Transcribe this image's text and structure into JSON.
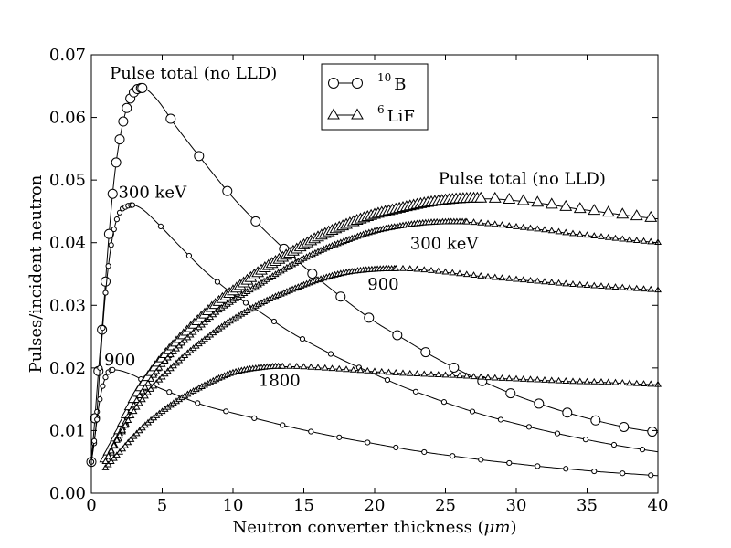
{
  "chart_data": {
    "type": "line",
    "title": "",
    "xlabel": "Neutron converter thickness (",
    "xlabel_symbol": "μm",
    "xlabel_close": ")",
    "ylabel": "Pulses/incident neutron",
    "xlim": [
      0,
      40
    ],
    "ylim": [
      0,
      0.07
    ],
    "xticks": [
      0,
      5,
      10,
      15,
      20,
      25,
      30,
      35,
      40
    ],
    "xtick_labels": [
      "0",
      "5",
      "10",
      "15",
      "20",
      "25",
      "30",
      "35",
      "40"
    ],
    "yticks": [
      0,
      0.01,
      0.02,
      0.03,
      0.04,
      0.05,
      0.06,
      0.07
    ],
    "ytick_labels": [
      "0.00",
      "0.01",
      "0.02",
      "0.03",
      "0.04",
      "0.05",
      "0.06",
      "0.07"
    ],
    "grid": false,
    "legend_position": "top-center",
    "legend": [
      {
        "sup": "10",
        "label": "B",
        "marker": "circle"
      },
      {
        "sup": "6",
        "label": "LiF",
        "marker": "triangle"
      }
    ],
    "annotations": [
      {
        "text": "Pulse total (no LLD)",
        "x": 1.3,
        "y": 0.0662
      },
      {
        "text": "300 keV",
        "x": 1.9,
        "y": 0.0472
      },
      {
        "text": "900",
        "x": 0.9,
        "y": 0.0204
      },
      {
        "text": "Pulse total (no LLD)",
        "x": 24.5,
        "y": 0.0494
      },
      {
        "text": "300 keV",
        "x": 22.5,
        "y": 0.039
      },
      {
        "text": "900",
        "x": 19.5,
        "y": 0.0325
      },
      {
        "text": "1800",
        "x": 11.8,
        "y": 0.0171
      }
    ],
    "series": [
      {
        "material": "B",
        "marker": "circle",
        "size": "large",
        "peak": [
          3.6,
          0.0647
        ],
        "x": [
          0,
          0.2,
          0.5,
          0.8,
          1.2,
          1.6,
          2.0,
          2.5,
          3.0,
          3.6,
          4.5,
          6,
          8,
          10,
          12,
          14,
          16,
          18,
          20,
          22,
          24,
          26,
          28,
          30,
          32,
          34,
          36,
          38,
          40
        ],
        "y": [
          0.005,
          0.0105,
          0.0195,
          0.0275,
          0.04,
          0.05,
          0.0565,
          0.0615,
          0.064,
          0.0647,
          0.0632,
          0.0585,
          0.0527,
          0.0472,
          0.0425,
          0.0382,
          0.0343,
          0.0307,
          0.0274,
          0.0247,
          0.022,
          0.0196,
          0.0175,
          0.0156,
          0.014,
          0.0126,
          0.0114,
          0.0104,
          0.0097
        ]
      },
      {
        "material": "B",
        "marker": "circle",
        "size": "small",
        "peak": [
          2.9,
          0.046
        ],
        "x": [
          0,
          0.3,
          0.6,
          1.0,
          1.5,
          2.0,
          2.5,
          2.9,
          3.5,
          4.5,
          6,
          8,
          10,
          12,
          14,
          16,
          18,
          20,
          22,
          24,
          26,
          28,
          30,
          32,
          34,
          36,
          38,
          40
        ],
        "y": [
          0.005,
          0.01,
          0.02,
          0.032,
          0.041,
          0.0448,
          0.0458,
          0.046,
          0.0455,
          0.0435,
          0.04,
          0.0355,
          0.0318,
          0.0288,
          0.0258,
          0.0233,
          0.021,
          0.019,
          0.017,
          0.0153,
          0.0137,
          0.0123,
          0.0111,
          0.01,
          0.009,
          0.0081,
          0.0073,
          0.0066
        ]
      },
      {
        "material": "B",
        "marker": "circle",
        "size": "small",
        "peak": [
          1.5,
          0.0197
        ],
        "x": [
          0,
          0.3,
          0.6,
          1.0,
          1.5,
          2.0,
          3,
          4,
          6,
          8,
          10,
          12,
          14,
          16,
          18,
          20,
          22,
          24,
          26,
          28,
          30,
          32,
          34,
          36,
          38,
          40
        ],
        "y": [
          0.005,
          0.01,
          0.015,
          0.0185,
          0.0197,
          0.0196,
          0.0188,
          0.0176,
          0.0157,
          0.014,
          0.0128,
          0.0117,
          0.0106,
          0.0096,
          0.0087,
          0.0079,
          0.0071,
          0.0064,
          0.0058,
          0.0052,
          0.0047,
          0.0042,
          0.0038,
          0.0034,
          0.0031,
          0.0028
        ]
      },
      {
        "material": "LiF",
        "marker": "triangle",
        "size": "large",
        "peak": [
          27.5,
          0.047
        ],
        "x": [
          1,
          2,
          3,
          4,
          5,
          6,
          7,
          8,
          9,
          10,
          12,
          14,
          16,
          18,
          20,
          22,
          24,
          26,
          28,
          30,
          32,
          34,
          36,
          38,
          40
        ],
        "y": [
          0.0055,
          0.01,
          0.015,
          0.0185,
          0.0215,
          0.024,
          0.0263,
          0.0285,
          0.0305,
          0.0322,
          0.0355,
          0.0382,
          0.0408,
          0.0428,
          0.0444,
          0.0455,
          0.0464,
          0.0469,
          0.047,
          0.0467,
          0.0462,
          0.0455,
          0.0449,
          0.0443,
          0.0438
        ]
      },
      {
        "material": "LiF",
        "marker": "triangle",
        "size": "small",
        "peak": [
          26.5,
          0.0433
        ],
        "x": [
          1,
          2,
          3,
          4,
          5,
          6,
          7,
          8,
          9,
          10,
          12,
          14,
          16,
          18,
          20,
          22,
          24,
          26,
          28,
          30,
          32,
          34,
          36,
          38,
          40
        ],
        "y": [
          0.005,
          0.0095,
          0.014,
          0.0175,
          0.0205,
          0.023,
          0.0252,
          0.0272,
          0.0292,
          0.0307,
          0.0335,
          0.0362,
          0.0385,
          0.0403,
          0.0418,
          0.0427,
          0.0432,
          0.0433,
          0.043,
          0.0425,
          0.042,
          0.0414,
          0.0409,
          0.0404,
          0.04
        ]
      },
      {
        "material": "LiF",
        "marker": "triangle",
        "size": "small",
        "peak": [
          21.5,
          0.0358
        ],
        "x": [
          1,
          2,
          3,
          4,
          5,
          6,
          7,
          8,
          9,
          10,
          12,
          14,
          16,
          18,
          20,
          22,
          24,
          26,
          28,
          30,
          32,
          34,
          36,
          38,
          40
        ],
        "y": [
          0.005,
          0.0092,
          0.013,
          0.016,
          0.0185,
          0.0207,
          0.0227,
          0.0245,
          0.0262,
          0.0277,
          0.0303,
          0.0323,
          0.034,
          0.0352,
          0.0357,
          0.0358,
          0.0355,
          0.035,
          0.0345,
          0.0341,
          0.0337,
          0.0333,
          0.033,
          0.0327,
          0.0324
        ]
      },
      {
        "material": "LiF",
        "marker": "triangle",
        "size": "small",
        "peak": [
          13.5,
          0.0202
        ],
        "x": [
          1,
          2,
          3,
          4,
          5,
          6,
          7,
          8,
          9,
          10,
          11,
          12,
          13,
          14,
          16,
          18,
          20,
          22,
          24,
          26,
          28,
          30,
          32,
          34,
          36,
          38,
          40
        ],
        "y": [
          0.004,
          0.0065,
          0.009,
          0.0112,
          0.013,
          0.0146,
          0.016,
          0.0172,
          0.0183,
          0.0192,
          0.0197,
          0.02,
          0.0202,
          0.0202,
          0.02,
          0.0197,
          0.0194,
          0.0191,
          0.0189,
          0.0187,
          0.0184,
          0.0182,
          0.018,
          0.0178,
          0.0177,
          0.0175,
          0.0173
        ]
      }
    ]
  }
}
